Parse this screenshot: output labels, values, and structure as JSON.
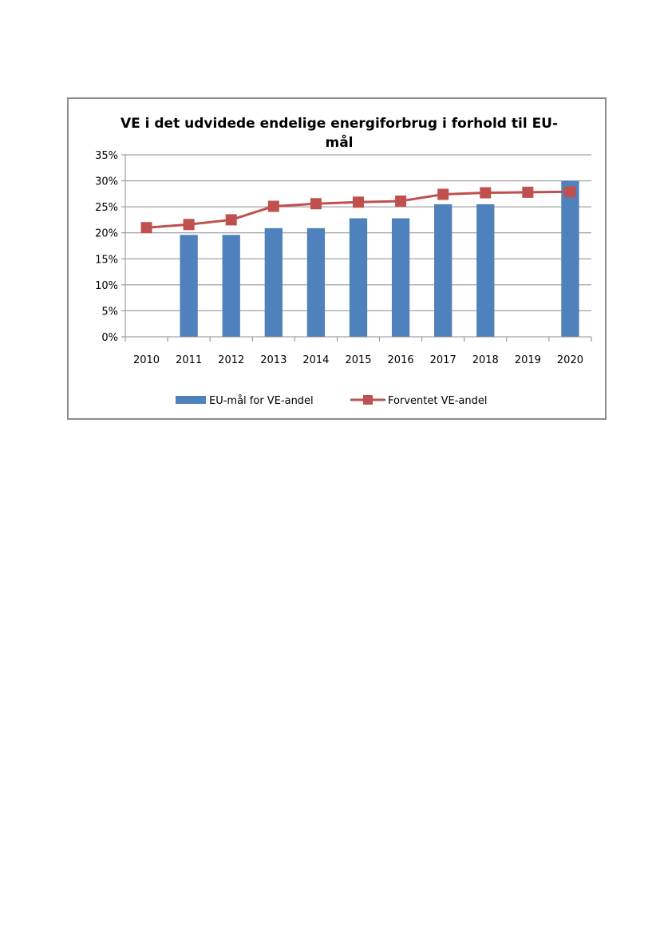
{
  "chart_data": {
    "type": "bar+line",
    "title_lines": [
      "VE i det udvidede endelige energiforbrug i forhold til EU-",
      "mål"
    ],
    "categories": [
      "2010",
      "2011",
      "2012",
      "2013",
      "2014",
      "2015",
      "2016",
      "2017",
      "2018",
      "2019",
      "2020"
    ],
    "ylim": [
      0,
      35
    ],
    "yticks": [
      0,
      5,
      10,
      15,
      20,
      25,
      30,
      35
    ],
    "ytick_labels": [
      "0%",
      "5%",
      "10%",
      "15%",
      "20%",
      "25%",
      "30%",
      "35%"
    ],
    "grid": true,
    "legend_position": "bottom",
    "series": [
      {
        "name": "EU-mål for VE-andel",
        "type": "bar",
        "color": "#4f81bd",
        "values": [
          null,
          19.6,
          19.6,
          20.9,
          20.9,
          22.8,
          22.8,
          25.5,
          25.5,
          null,
          30.0
        ]
      },
      {
        "name": "Forventet VE-andel",
        "type": "line",
        "color": "#c0504d",
        "values": [
          21.0,
          21.6,
          22.5,
          25.1,
          25.6,
          25.9,
          26.1,
          27.4,
          27.7,
          27.8,
          27.9
        ]
      }
    ]
  }
}
